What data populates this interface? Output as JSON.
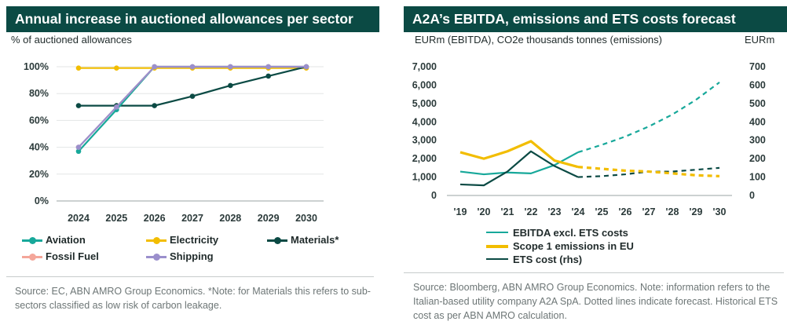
{
  "charts": [
    {
      "title": "Annual increase in auctioned allowances per sector",
      "unit_label": "% of auctioned allowances",
      "source": "Source: EC, ABN AMRO Group Economics. *Note: for Materials this refers to sub-sectors classified as low risk of carbon leakage."
    },
    {
      "title": "A2A’s EBITDA, emissions and ETS costs forecast",
      "unit_label_left": "EURm (EBITDA),  CO2e thousands tonnes (emissions)",
      "unit_label_right": "EURm",
      "source": "Source: Bloomberg, ABN AMRO Group Economics. Note: information refers to the Italian-based utility company A2A SpA. Dotted lines indicate forecast. Historical ETS cost as per ABN AMRO calculation."
    }
  ],
  "chart_data": [
    {
      "type": "line",
      "title": "Annual increase in auctioned allowances per sector",
      "ylabel": "% of auctioned allowances",
      "x": [
        "2024",
        "2025",
        "2026",
        "2027",
        "2028",
        "2029",
        "2030"
      ],
      "ylim": [
        0,
        100
      ],
      "yticks": [
        0,
        20,
        40,
        60,
        80,
        100
      ],
      "ytick_labels": [
        "0%",
        "20%",
        "40%",
        "60%",
        "80%",
        "100%"
      ],
      "grid": true,
      "legend": "bottom",
      "series": [
        {
          "name": "Aviation",
          "color": "#17a89a",
          "values": [
            37,
            68,
            100,
            100,
            100,
            100,
            100
          ]
        },
        {
          "name": "Electricity",
          "color": "#f2bd00",
          "values": [
            99,
            99,
            99,
            99,
            99,
            99,
            99
          ]
        },
        {
          "name": "Materials*",
          "color": "#0b4a44",
          "values": [
            71,
            71,
            71,
            78,
            86,
            93,
            100
          ]
        },
        {
          "name": "Fossil Fuel",
          "color": "#f4a69a",
          "values": [
            40,
            70,
            100,
            100,
            100,
            100,
            100
          ]
        },
        {
          "name": "Shipping",
          "color": "#9b8fcc",
          "values": [
            40,
            70,
            100,
            100,
            100,
            100,
            100
          ]
        }
      ]
    },
    {
      "type": "line",
      "title": "A2A’s EBITDA, emissions and ETS costs forecast",
      "ylabel": "EURm (EBITDA),  CO2e thousands tonnes (emissions)",
      "ylabel_right": "EURm",
      "x": [
        "'19",
        "'20",
        "'21",
        "'22",
        "'23",
        "'24",
        "'25",
        "'26",
        "'27",
        "'28",
        "'29",
        "'30"
      ],
      "ylim": [
        0,
        7000
      ],
      "yticks": [
        0,
        1000,
        2000,
        3000,
        4000,
        5000,
        6000,
        7000
      ],
      "ytick_labels": [
        "0",
        "1,000",
        "2,000",
        "3,000",
        "4,000",
        "5,000",
        "6,000",
        "7,000"
      ],
      "ylim_right": [
        0,
        700
      ],
      "yticks_right": [
        0,
        100,
        200,
        300,
        400,
        500,
        600,
        700
      ],
      "grid": false,
      "legend": "bottom-left",
      "forecast_start": "'24",
      "series": [
        {
          "name": "EBITDA excl. ETS costs",
          "color": "#17a89a",
          "axis": "left",
          "values": [
            1300,
            1150,
            1250,
            1200,
            1650,
            2350,
            2750,
            3200,
            3750,
            4400,
            5200,
            6150
          ]
        },
        {
          "name": "Scope 1 emissions in EU",
          "color": "#f2bd00",
          "axis": "left",
          "values": [
            2350,
            2000,
            2400,
            2950,
            1900,
            1550,
            1450,
            1350,
            1300,
            1200,
            1100,
            1050
          ]
        },
        {
          "name": "ETS cost (rhs)",
          "color": "#0b4a44",
          "axis": "right",
          "values": [
            60,
            55,
            130,
            240,
            160,
            100,
            105,
            115,
            130,
            130,
            140,
            150
          ]
        }
      ]
    }
  ]
}
